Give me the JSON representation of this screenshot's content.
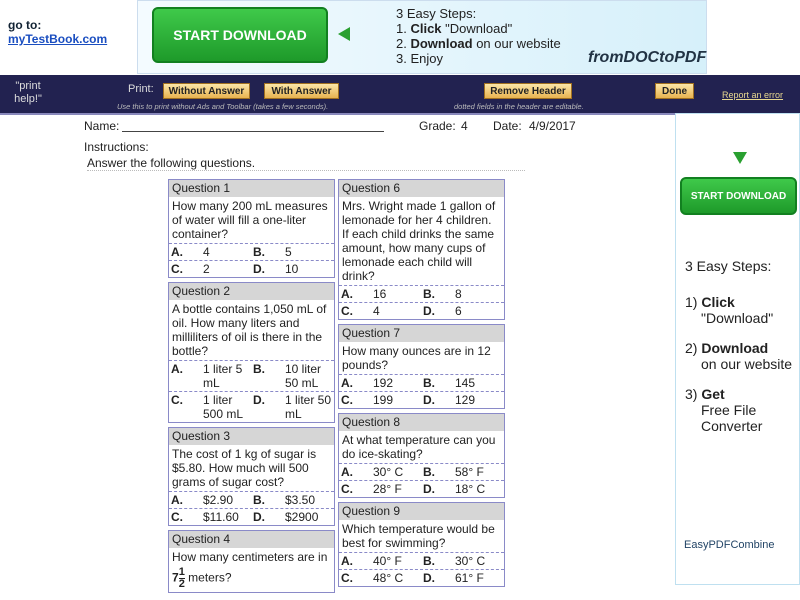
{
  "header": {
    "goto_label": "go to:",
    "goto_link": "myTestBook.com"
  },
  "top_ad": {
    "button": "START DOWNLOAD",
    "steps_title": "3 Easy Steps:",
    "steps": [
      {
        "num": "1.",
        "bold": "Click",
        "rest": "\"Download\""
      },
      {
        "num": "2.",
        "bold": "Download",
        "rest": "on our website"
      },
      {
        "num": "3.",
        "rest": "Enjoy"
      }
    ],
    "brand": "fromDOCtoPDF"
  },
  "toolbar": {
    "print_help": "\"print help!\"",
    "print_label": "Print:",
    "buttons": [
      "Without Answer",
      "With Answer",
      "Remove Header",
      "Done"
    ],
    "note_left": "Use this to print without Ads and Toolbar (takes a few seconds).",
    "note_right": "dotted fields in the header are editable.",
    "report": "Report an error"
  },
  "worksheet": {
    "name_label": "Name:",
    "grade_label": "Grade:",
    "grade": "4",
    "date_label": "Date:",
    "date": "4/9/2017",
    "instructions_label": "Instructions:",
    "instructions": "Answer the following questions.",
    "columns": [
      [
        {
          "title": "Question 1",
          "text": "How many 200 mL measures of water will fill a one-liter container?",
          "choices": [
            {
              "letter": "A.",
              "value": "4"
            },
            {
              "letter": "B.",
              "value": "5"
            },
            {
              "letter": "C.",
              "value": "2"
            },
            {
              "letter": "D.",
              "value": "10"
            }
          ]
        },
        {
          "title": "Question 2",
          "text": "A bottle contains 1,050 mL of oil. How many liters and milliliters of oil is there in the bottle?",
          "choices": [
            {
              "letter": "A.",
              "value": "1 liter 5 mL"
            },
            {
              "letter": "B.",
              "value": "10 liter 50 mL"
            },
            {
              "letter": "C.",
              "value": "1 liter 500 mL"
            },
            {
              "letter": "D.",
              "value": "1 liter 50 mL"
            }
          ]
        },
        {
          "title": "Question 3",
          "text": "The cost of 1 kg of sugar is $5.80. How much will 500 grams of sugar cost?",
          "choices": [
            {
              "letter": "A.",
              "value": "$2.90"
            },
            {
              "letter": "B.",
              "value": "$3.50"
            },
            {
              "letter": "C.",
              "value": "$11.60"
            },
            {
              "letter": "D.",
              "value": "$2900"
            }
          ]
        },
        {
          "title": "Question 4",
          "text": "How many centimeters are in",
          "mixed": {
            "whole": "7",
            "num": "1",
            "den": "2"
          },
          "after": "meters?"
        }
      ],
      [
        {
          "title": "Question 6",
          "text": "Mrs. Wright made 1 gallon of lemonade for her 4 children. If each child drinks the same amount, how many cups of lemonade each child will drink?",
          "choices": [
            {
              "letter": "A.",
              "value": "16"
            },
            {
              "letter": "B.",
              "value": "8"
            },
            {
              "letter": "C.",
              "value": "4"
            },
            {
              "letter": "D.",
              "value": "6"
            }
          ]
        },
        {
          "title": "Question 7",
          "text": "How many ounces are in 12 pounds?",
          "choices": [
            {
              "letter": "A.",
              "value": "192"
            },
            {
              "letter": "B.",
              "value": "145"
            },
            {
              "letter": "C.",
              "value": "199"
            },
            {
              "letter": "D.",
              "value": "129"
            }
          ]
        },
        {
          "title": "Question 8",
          "text": "At what temperature can you do ice-skating?",
          "choices": [
            {
              "letter": "A.",
              "value": "30° C"
            },
            {
              "letter": "B.",
              "value": "58° F"
            },
            {
              "letter": "C.",
              "value": "28° F"
            },
            {
              "letter": "D.",
              "value": "18° C"
            }
          ]
        },
        {
          "title": "Question 9",
          "text": "Which temperature would be best for swimming?",
          "choices": [
            {
              "letter": "A.",
              "value": "40° F"
            },
            {
              "letter": "B.",
              "value": "30° C"
            },
            {
              "letter": "C.",
              "value": "48° C"
            },
            {
              "letter": "D.",
              "value": "61° F"
            }
          ]
        }
      ]
    ]
  },
  "side_ad": {
    "button": "START DOWNLOAD",
    "steps_title": "3 Easy Steps:",
    "steps": [
      {
        "num": "1)",
        "bold": "Click",
        "rest": "\"Download\""
      },
      {
        "num": "2)",
        "bold": "Download",
        "rest": "on our website"
      },
      {
        "num": "3)",
        "bold": "Get",
        "rest": "Free File Converter"
      }
    ],
    "brand": "EasyPDFCombine"
  }
}
